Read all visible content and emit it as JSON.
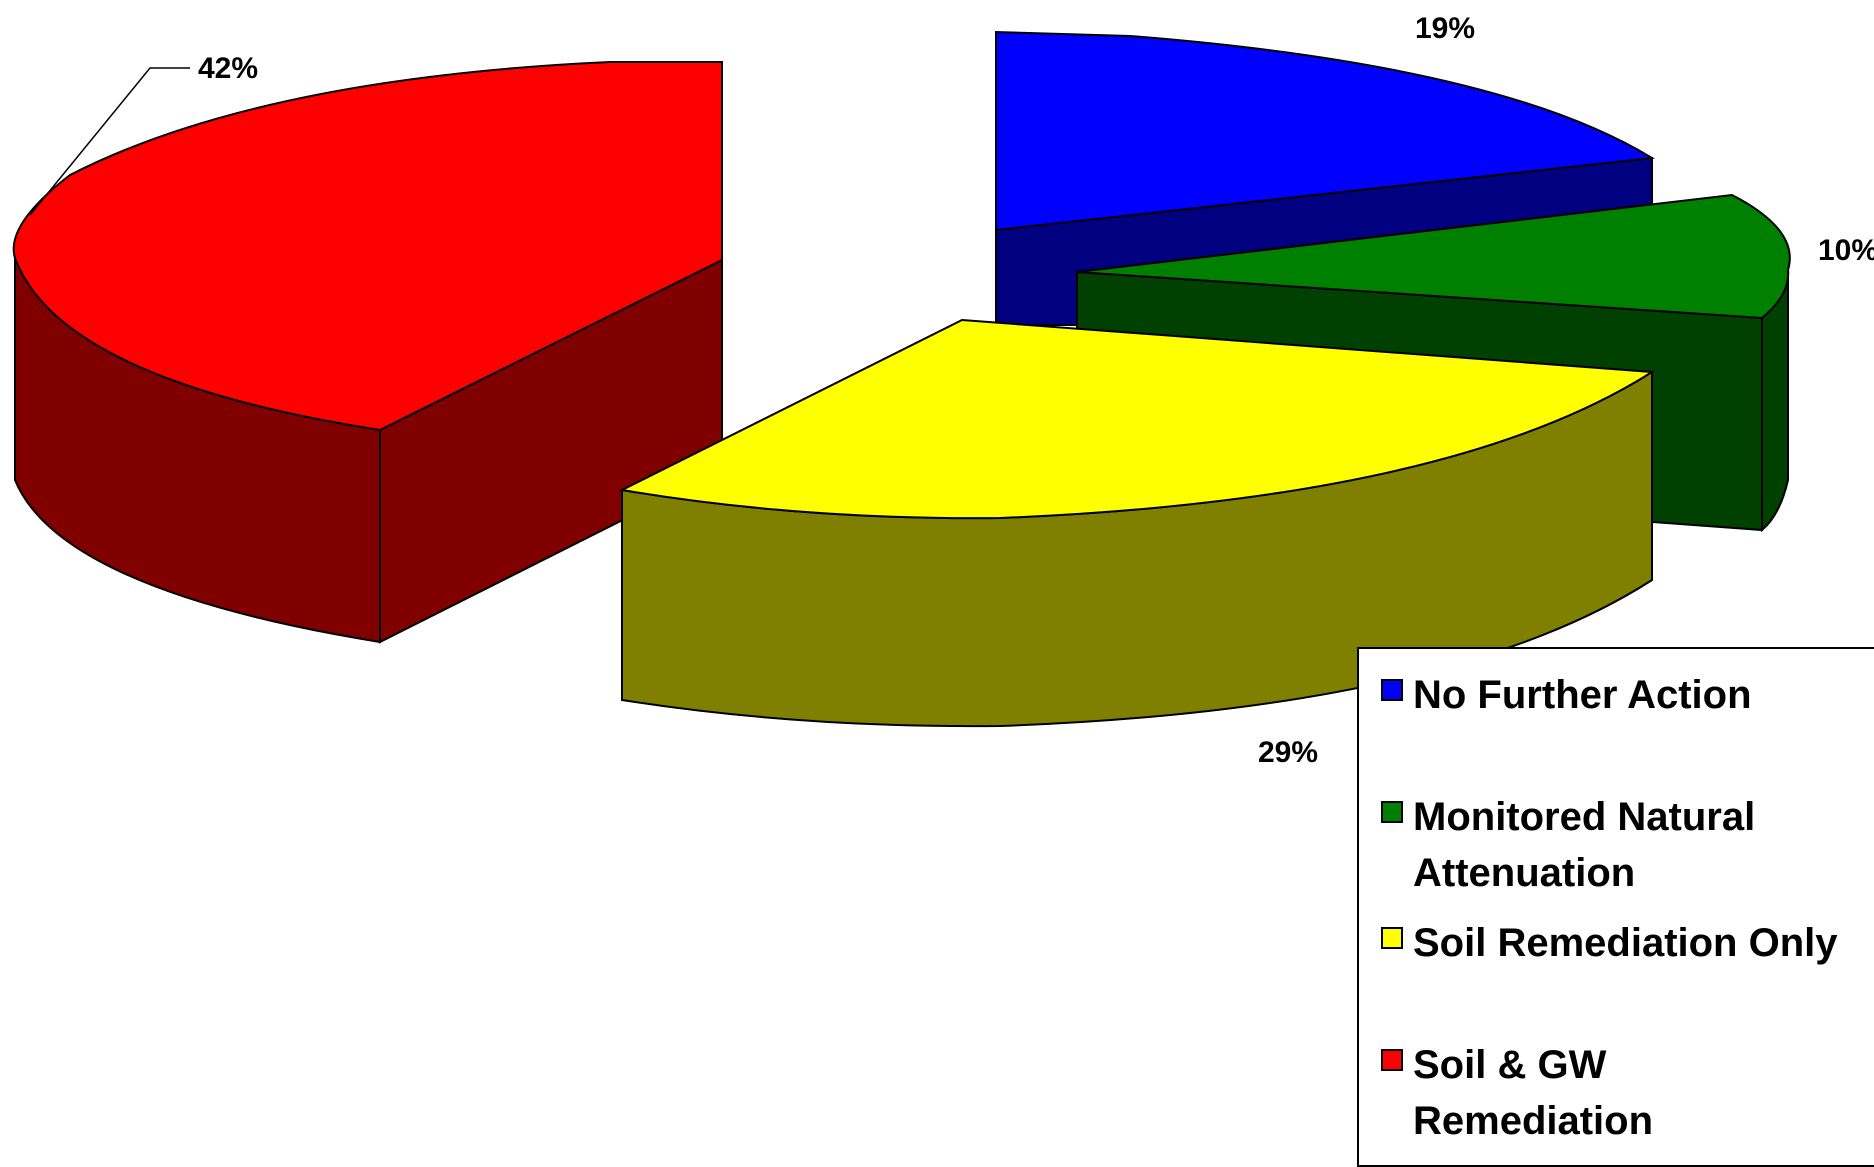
{
  "chart_data": {
    "type": "pie",
    "style": "3d-exploded",
    "categories": [
      "No Further Action",
      "Monitored Natural Attenuation",
      "Soil Remediation Only",
      "Soil & GW Remediation"
    ],
    "values": [
      19,
      10,
      29,
      42
    ],
    "labels": [
      "19%",
      "10%",
      "29%",
      "42%"
    ],
    "colors": {
      "No Further Action": "#0000FF",
      "Monitored Natural Attenuation": "#008000",
      "Soil Remediation Only": "#FFFF00",
      "Soil & GW Remediation": "#FF0000"
    },
    "side_colors": {
      "No Further Action": "#000080",
      "Monitored Natural Attenuation": "#004000",
      "Soil Remediation Only": "#808000",
      "Soil & GW Remediation": "#800000"
    },
    "legend_placement": "bottom-right"
  }
}
